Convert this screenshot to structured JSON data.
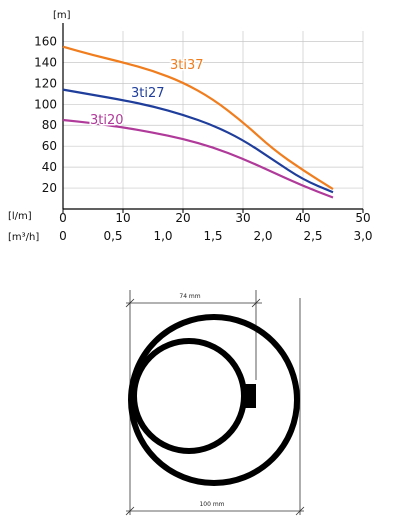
{
  "chart_data": {
    "type": "line",
    "ylabel": "[m]",
    "xlabel_primary": "[l/m]",
    "xlabel_secondary": "[m³/h]",
    "xlim": [
      0,
      50
    ],
    "ylim": [
      0,
      170
    ],
    "grid": true,
    "y_ticks": [
      "20",
      "40",
      "60",
      "80",
      "100",
      "120",
      "140",
      "160"
    ],
    "x_ticks_primary": [
      "0",
      "10",
      "20",
      "30",
      "40",
      "50"
    ],
    "x_ticks_secondary": [
      "0",
      "0,5",
      "1,0",
      "1,5",
      "2,0",
      "2,5",
      "3,0"
    ],
    "series": [
      {
        "name": "3ti37",
        "color": "#f07d1e",
        "points": [
          [
            0,
            155
          ],
          [
            5,
            147
          ],
          [
            10,
            140
          ],
          [
            15,
            132
          ],
          [
            20,
            121
          ],
          [
            25,
            105
          ],
          [
            30,
            83
          ],
          [
            35,
            57
          ],
          [
            40,
            37
          ],
          [
            45,
            19
          ]
        ]
      },
      {
        "name": "3ti27",
        "color": "#1f3e9c",
        "points": [
          [
            0,
            114
          ],
          [
            5,
            109
          ],
          [
            10,
            104
          ],
          [
            15,
            98
          ],
          [
            20,
            90
          ],
          [
            25,
            80
          ],
          [
            30,
            66
          ],
          [
            35,
            47
          ],
          [
            40,
            28
          ],
          [
            45,
            16
          ]
        ]
      },
      {
        "name": "3ti20",
        "color": "#b03a9a",
        "points": [
          [
            0,
            85
          ],
          [
            5,
            82
          ],
          [
            10,
            78
          ],
          [
            15,
            73
          ],
          [
            20,
            67
          ],
          [
            25,
            59
          ],
          [
            30,
            48
          ],
          [
            35,
            35
          ],
          [
            40,
            22
          ],
          [
            45,
            11
          ]
        ]
      }
    ]
  },
  "diagram": {
    "top_dimension": "74 mm",
    "bottom_dimension": "100 mm"
  }
}
